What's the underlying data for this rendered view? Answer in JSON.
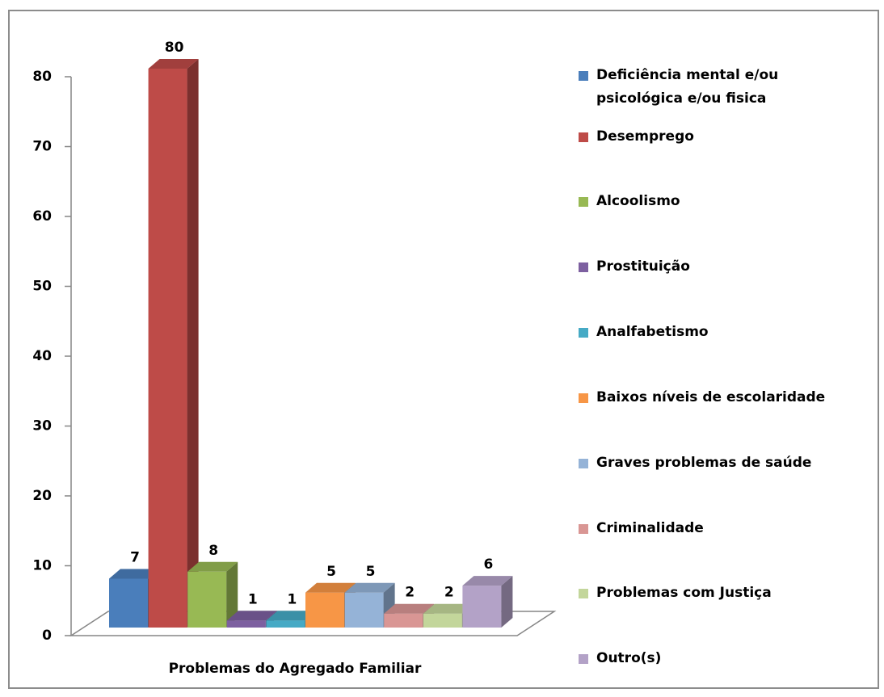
{
  "chart_data": {
    "type": "bar",
    "categories": [
      "Problemas do Agregado Familiar"
    ],
    "series": [
      {
        "name": "Deficiência mental e/ou psicológica e/ou fisica",
        "color": "#4a7ebb",
        "values": [
          7
        ]
      },
      {
        "name": "Desemprego",
        "color": "#be4b48",
        "values": [
          80
        ]
      },
      {
        "name": "Alcoolismo",
        "color": "#98b954",
        "values": [
          8
        ]
      },
      {
        "name": "Prostituição",
        "color": "#7d60a0",
        "values": [
          1
        ]
      },
      {
        "name": "Analfabetismo",
        "color": "#46aac5",
        "values": [
          1
        ]
      },
      {
        "name": "Baixos níveis de escolaridade",
        "color": "#f79646",
        "values": [
          5
        ]
      },
      {
        "name": "Graves problemas de saúde",
        "color": "#95b3d7",
        "values": [
          5
        ]
      },
      {
        "name": "Criminalidade",
        "color": "#d99694",
        "values": [
          2
        ]
      },
      {
        "name": "Problemas com Justiça",
        "color": "#c3d69b",
        "values": [
          2
        ]
      },
      {
        "name": "Outro(s)",
        "color": "#b3a2c7",
        "values": [
          6
        ]
      }
    ],
    "ylim": [
      0,
      80
    ],
    "yticks": [
      0,
      10,
      20,
      30,
      40,
      50,
      60,
      70,
      80
    ],
    "legend": "right"
  }
}
